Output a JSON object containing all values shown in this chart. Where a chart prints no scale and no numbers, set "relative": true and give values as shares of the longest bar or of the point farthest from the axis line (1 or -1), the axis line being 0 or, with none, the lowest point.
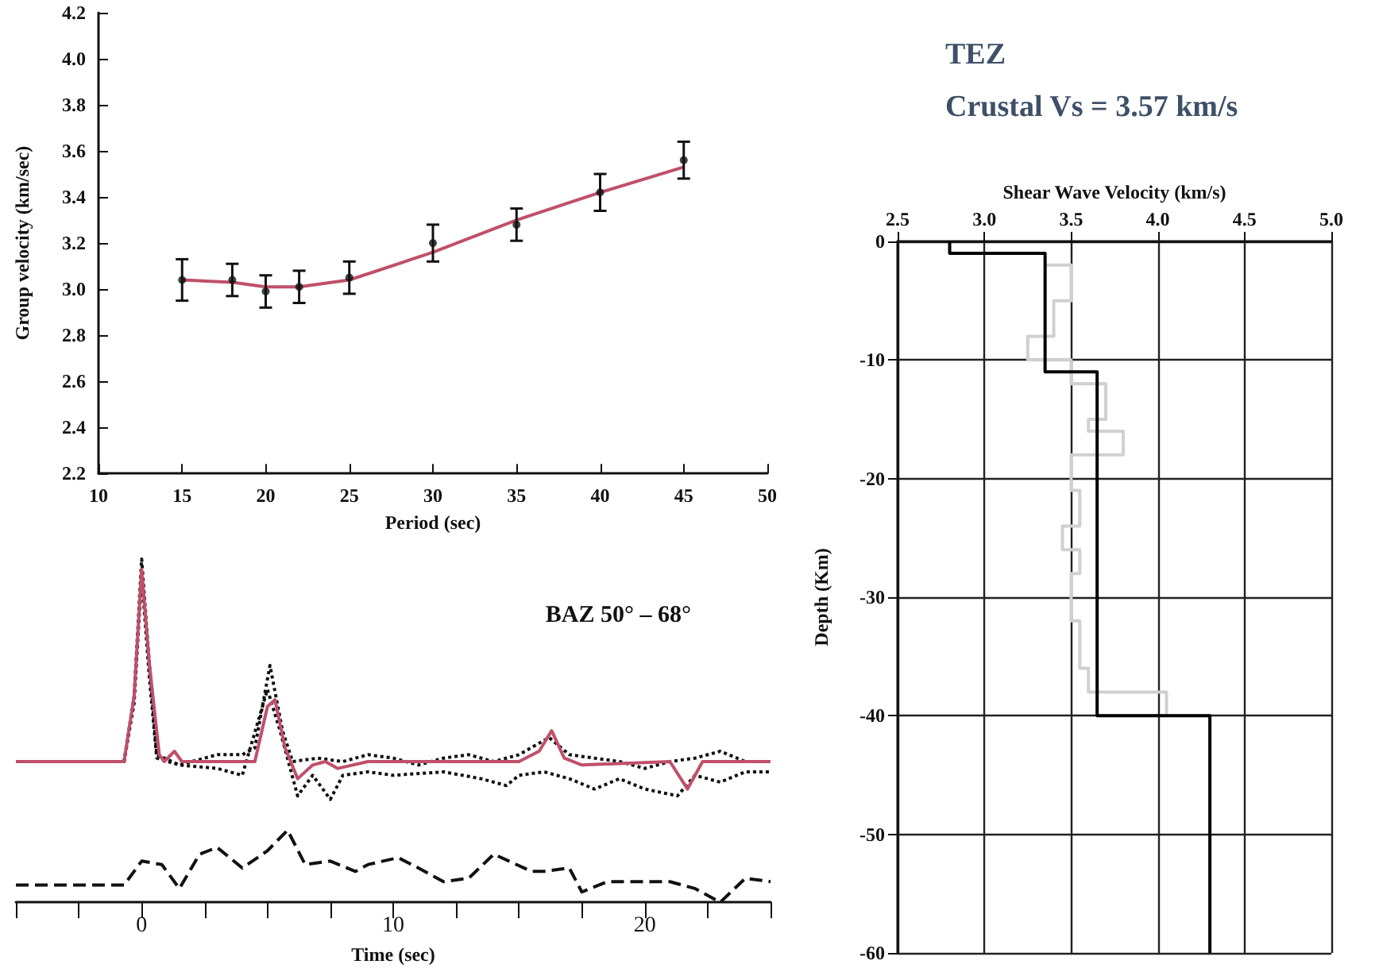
{
  "chart_data": [
    {
      "type": "line",
      "xlabel": "Period (sec)",
      "ylabel": "Group velocity (km/sec)",
      "x": [
        15,
        18,
        20,
        22,
        25,
        30,
        35,
        40,
        45
      ],
      "xlim": [
        10,
        50
      ],
      "xticks": [
        10,
        15,
        20,
        25,
        30,
        35,
        40,
        45,
        50
      ],
      "ylim": [
        2.2,
        4.2
      ],
      "yticks": [
        2.2,
        {
          "value": 2.4,
          "label": "2.4"
        },
        {
          "value": 2.6,
          "label": "2.6"
        },
        {
          "value": 2.8,
          "label": "2.8"
        },
        {
          "value": 3,
          "label": "3.0"
        },
        {
          "value": 3.2,
          "label": "3.2"
        },
        {
          "value": 3.4,
          "label": "3.4"
        },
        {
          "value": 3.6,
          "label": "3.6"
        },
        {
          "value": 3.8,
          "label": "3.8"
        },
        {
          "value": 4,
          "label": "4.0"
        },
        4.2
      ],
      "grid": false,
      "series": [
        {
          "color": "#c0506a",
          "marker": "none",
          "values": [
            3.04,
            3.03,
            3.01,
            3.01,
            3.04,
            3.16,
            3.3,
            3.42,
            3.53
          ]
        },
        {
          "type": "scatter",
          "color": "#111111",
          "marker": "circle",
          "values": [
            3.04,
            3.04,
            2.99,
            3.01,
            3.05,
            3.2,
            3.28,
            3.42,
            3.56
          ],
          "errors": [
            0.09,
            0.07,
            0.07,
            0.07,
            0.07,
            0.08,
            0.07,
            0.08,
            0.08
          ]
        }
      ]
    },
    {
      "type": "line",
      "relative": true,
      "xlabel": "Time (sec)",
      "xlim": [
        -5,
        25
      ],
      "xticks": [
        {
          "value": -2.5,
          "label": null
        },
        0,
        {
          "value": 2.5,
          "label": null
        },
        {
          "value": 5,
          "label": null
        },
        {
          "value": 7.5,
          "label": null
        },
        10,
        {
          "value": 12.5,
          "label": null
        },
        {
          "value": 15,
          "label": null
        },
        {
          "value": 17.5,
          "label": null
        },
        20,
        {
          "value": 22.5,
          "label": null
        }
      ],
      "tick_labels": "x",
      "annotations": [
        "BAZ 50° – 68°"
      ],
      "series": [
        {
          "color": "#111111",
          "line_style": "dotted",
          "x": [
            -5,
            -0.7,
            -0.3,
            0,
            0.3,
            0.6,
            1.5,
            3,
            4,
            4.5,
            5.1,
            5.6,
            6,
            7,
            8,
            9,
            10,
            11,
            12,
            13,
            14,
            15,
            16.2,
            17,
            18,
            19,
            20,
            21,
            22,
            23,
            24,
            25
          ],
          "values": [
            0.41,
            0.41,
            0.6,
            1,
            0.7,
            0.43,
            0.4,
            0.43,
            0.43,
            0.45,
            0.69,
            0.5,
            0.41,
            0.42,
            0.41,
            0.43,
            0.42,
            0.4,
            0.42,
            0.43,
            0.41,
            0.43,
            0.48,
            0.43,
            0.42,
            0.41,
            0.39,
            0.41,
            0.42,
            0.44,
            0.41,
            0.41
          ]
        },
        {
          "color": "#111111",
          "line_style": "dotted",
          "x": [
            -5,
            -0.7,
            -0.3,
            0,
            0.3,
            0.6,
            1.5,
            3,
            4,
            5,
            5.5,
            6.2,
            6.8,
            7.5,
            8,
            9,
            10,
            12,
            13.5,
            14.5,
            15,
            16,
            17,
            18,
            19,
            20,
            21.3,
            22,
            23,
            24,
            25
          ],
          "values": [
            0.41,
            0.41,
            0.58,
            0.95,
            0.66,
            0.42,
            0.4,
            0.39,
            0.37,
            0.62,
            0.5,
            0.31,
            0.37,
            0.3,
            0.37,
            0.38,
            0.37,
            0.38,
            0.36,
            0.34,
            0.37,
            0.38,
            0.36,
            0.33,
            0.36,
            0.33,
            0.31,
            0.37,
            0.35,
            0.38,
            0.38
          ]
        },
        {
          "color": "#c0506a",
          "line_style": "solid",
          "x": [
            -5,
            -0.7,
            -0.3,
            0,
            0.3,
            0.7,
            0.9,
            1.3,
            1.6,
            4.5,
            5,
            5.3,
            5.7,
            6.2,
            6.8,
            7.3,
            7.8,
            9,
            15,
            15.8,
            16.3,
            16.8,
            17.5,
            21,
            21.7,
            22.3,
            25
          ],
          "values": [
            0.41,
            0.41,
            0.6,
            0.97,
            0.7,
            0.43,
            0.41,
            0.44,
            0.41,
            0.41,
            0.57,
            0.59,
            0.45,
            0.36,
            0.4,
            0.41,
            0.39,
            0.41,
            0.41,
            0.44,
            0.5,
            0.42,
            0.4,
            0.41,
            0.33,
            0.41,
            0.41
          ]
        },
        {
          "color": "#111111",
          "line_style": "dashed",
          "x": [
            -5,
            -0.7,
            0,
            0.8,
            1.5,
            2.3,
            3,
            4,
            5,
            5.8,
            6.5,
            7.5,
            8.5,
            9,
            10.2,
            11,
            12,
            13,
            14,
            15.5,
            16,
            17,
            17.5,
            18.5,
            20,
            21,
            22,
            23,
            24,
            25
          ],
          "values": [
            0.05,
            0.05,
            0.12,
            0.11,
            0.04,
            0.14,
            0.16,
            0.1,
            0.15,
            0.21,
            0.11,
            0.12,
            0.09,
            0.11,
            0.13,
            0.1,
            0.06,
            0.07,
            0.14,
            0.09,
            0.09,
            0.1,
            0.03,
            0.06,
            0.06,
            0.06,
            0.04,
            0,
            0.07,
            0.06
          ]
        }
      ]
    },
    {
      "type": "line",
      "title": "TEZ",
      "subtitle": "Crustal Vs = 3.57 km/s",
      "xlabel": "Shear Wave Velocity (km/s)",
      "ylabel": "Depth (Km)",
      "xlim": [
        2.5,
        5
      ],
      "xticks": [
        2.5,
        {
          "value": 3,
          "label": "3.0"
        },
        3.5,
        {
          "value": 4,
          "label": "4.0"
        },
        4.5,
        {
          "value": 5,
          "label": "5.0"
        }
      ],
      "ylim": [
        -60,
        0
      ],
      "yticks": [
        -60,
        -50,
        -40,
        -30,
        -20,
        -10,
        0
      ],
      "grid": true,
      "series": [
        {
          "color": "#d0d0d0",
          "x": [
            3.35,
            3.5,
            3.5,
            3.4,
            3.4,
            3.25,
            3.25,
            3.5,
            3.5,
            3.7,
            3.7,
            3.6,
            3.6,
            3.8,
            3.8,
            3.5,
            3.5,
            3.55,
            3.55,
            3.45,
            3.45,
            3.55,
            3.55,
            3.5,
            3.5,
            3.55,
            3.55,
            3.6,
            3.6,
            4.05,
            4.05
          ],
          "values": [
            -2,
            -2,
            -5,
            -5,
            -8,
            -8,
            -10,
            -10,
            -12,
            -12,
            -15,
            -15,
            -16,
            -16,
            -18,
            -18,
            -21,
            -21,
            -24,
            -24,
            -26,
            -26,
            -28,
            -28,
            -32,
            -32,
            -36,
            -36,
            -38,
            -38,
            -40
          ]
        },
        {
          "color": "#000000",
          "x": [
            2.8,
            2.8,
            3.35,
            3.35,
            3.65,
            3.65,
            4.3,
            4.3
          ],
          "values": [
            0,
            -1,
            -1,
            -11,
            -11,
            -40,
            -40,
            -60
          ]
        }
      ]
    }
  ]
}
